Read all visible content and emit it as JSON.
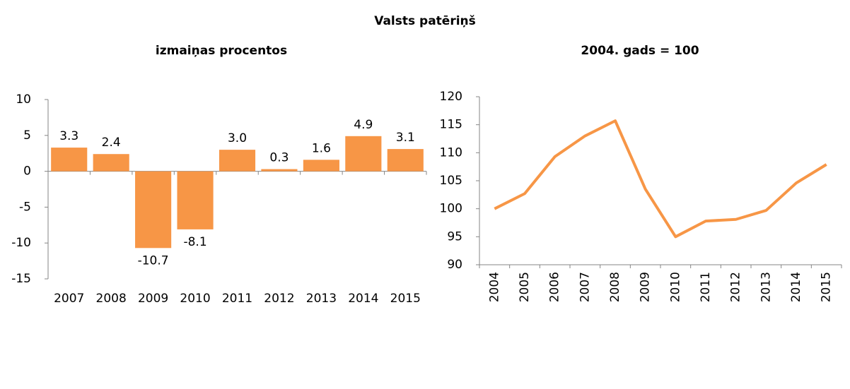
{
  "title": "Valsts patēriņš",
  "chart_data": [
    {
      "type": "bar",
      "title": "izmaiņas procentos",
      "categories": [
        "2007",
        "2008",
        "2009",
        "2010",
        "2011",
        "2012",
        "2013",
        "2014",
        "2015"
      ],
      "values": [
        3.3,
        2.4,
        -10.7,
        -8.1,
        3.0,
        0.3,
        1.6,
        4.9,
        3.1
      ],
      "value_labels": [
        "3.3",
        "2.4",
        "-10.7",
        "-8.1",
        "3.0",
        "0.3",
        "1.6",
        "4.9",
        "3.1"
      ],
      "color": "#f79646",
      "ylim": [
        -15,
        10
      ],
      "yticks": [
        -15,
        -10,
        -5,
        0,
        5,
        10
      ]
    },
    {
      "type": "line",
      "title": "2004. gads = 100",
      "categories": [
        "2004",
        "2005",
        "2006",
        "2007",
        "2008",
        "2009",
        "2010",
        "2011",
        "2012",
        "2013",
        "2014",
        "2015"
      ],
      "values": [
        100,
        102.7,
        109.3,
        113,
        115.7,
        103.5,
        95,
        97.8,
        98.1,
        99.7,
        104.6,
        107.9
      ],
      "color": "#f79646",
      "ylim": [
        90,
        120
      ],
      "yticks": [
        90,
        95,
        100,
        105,
        110,
        115,
        120
      ]
    }
  ]
}
